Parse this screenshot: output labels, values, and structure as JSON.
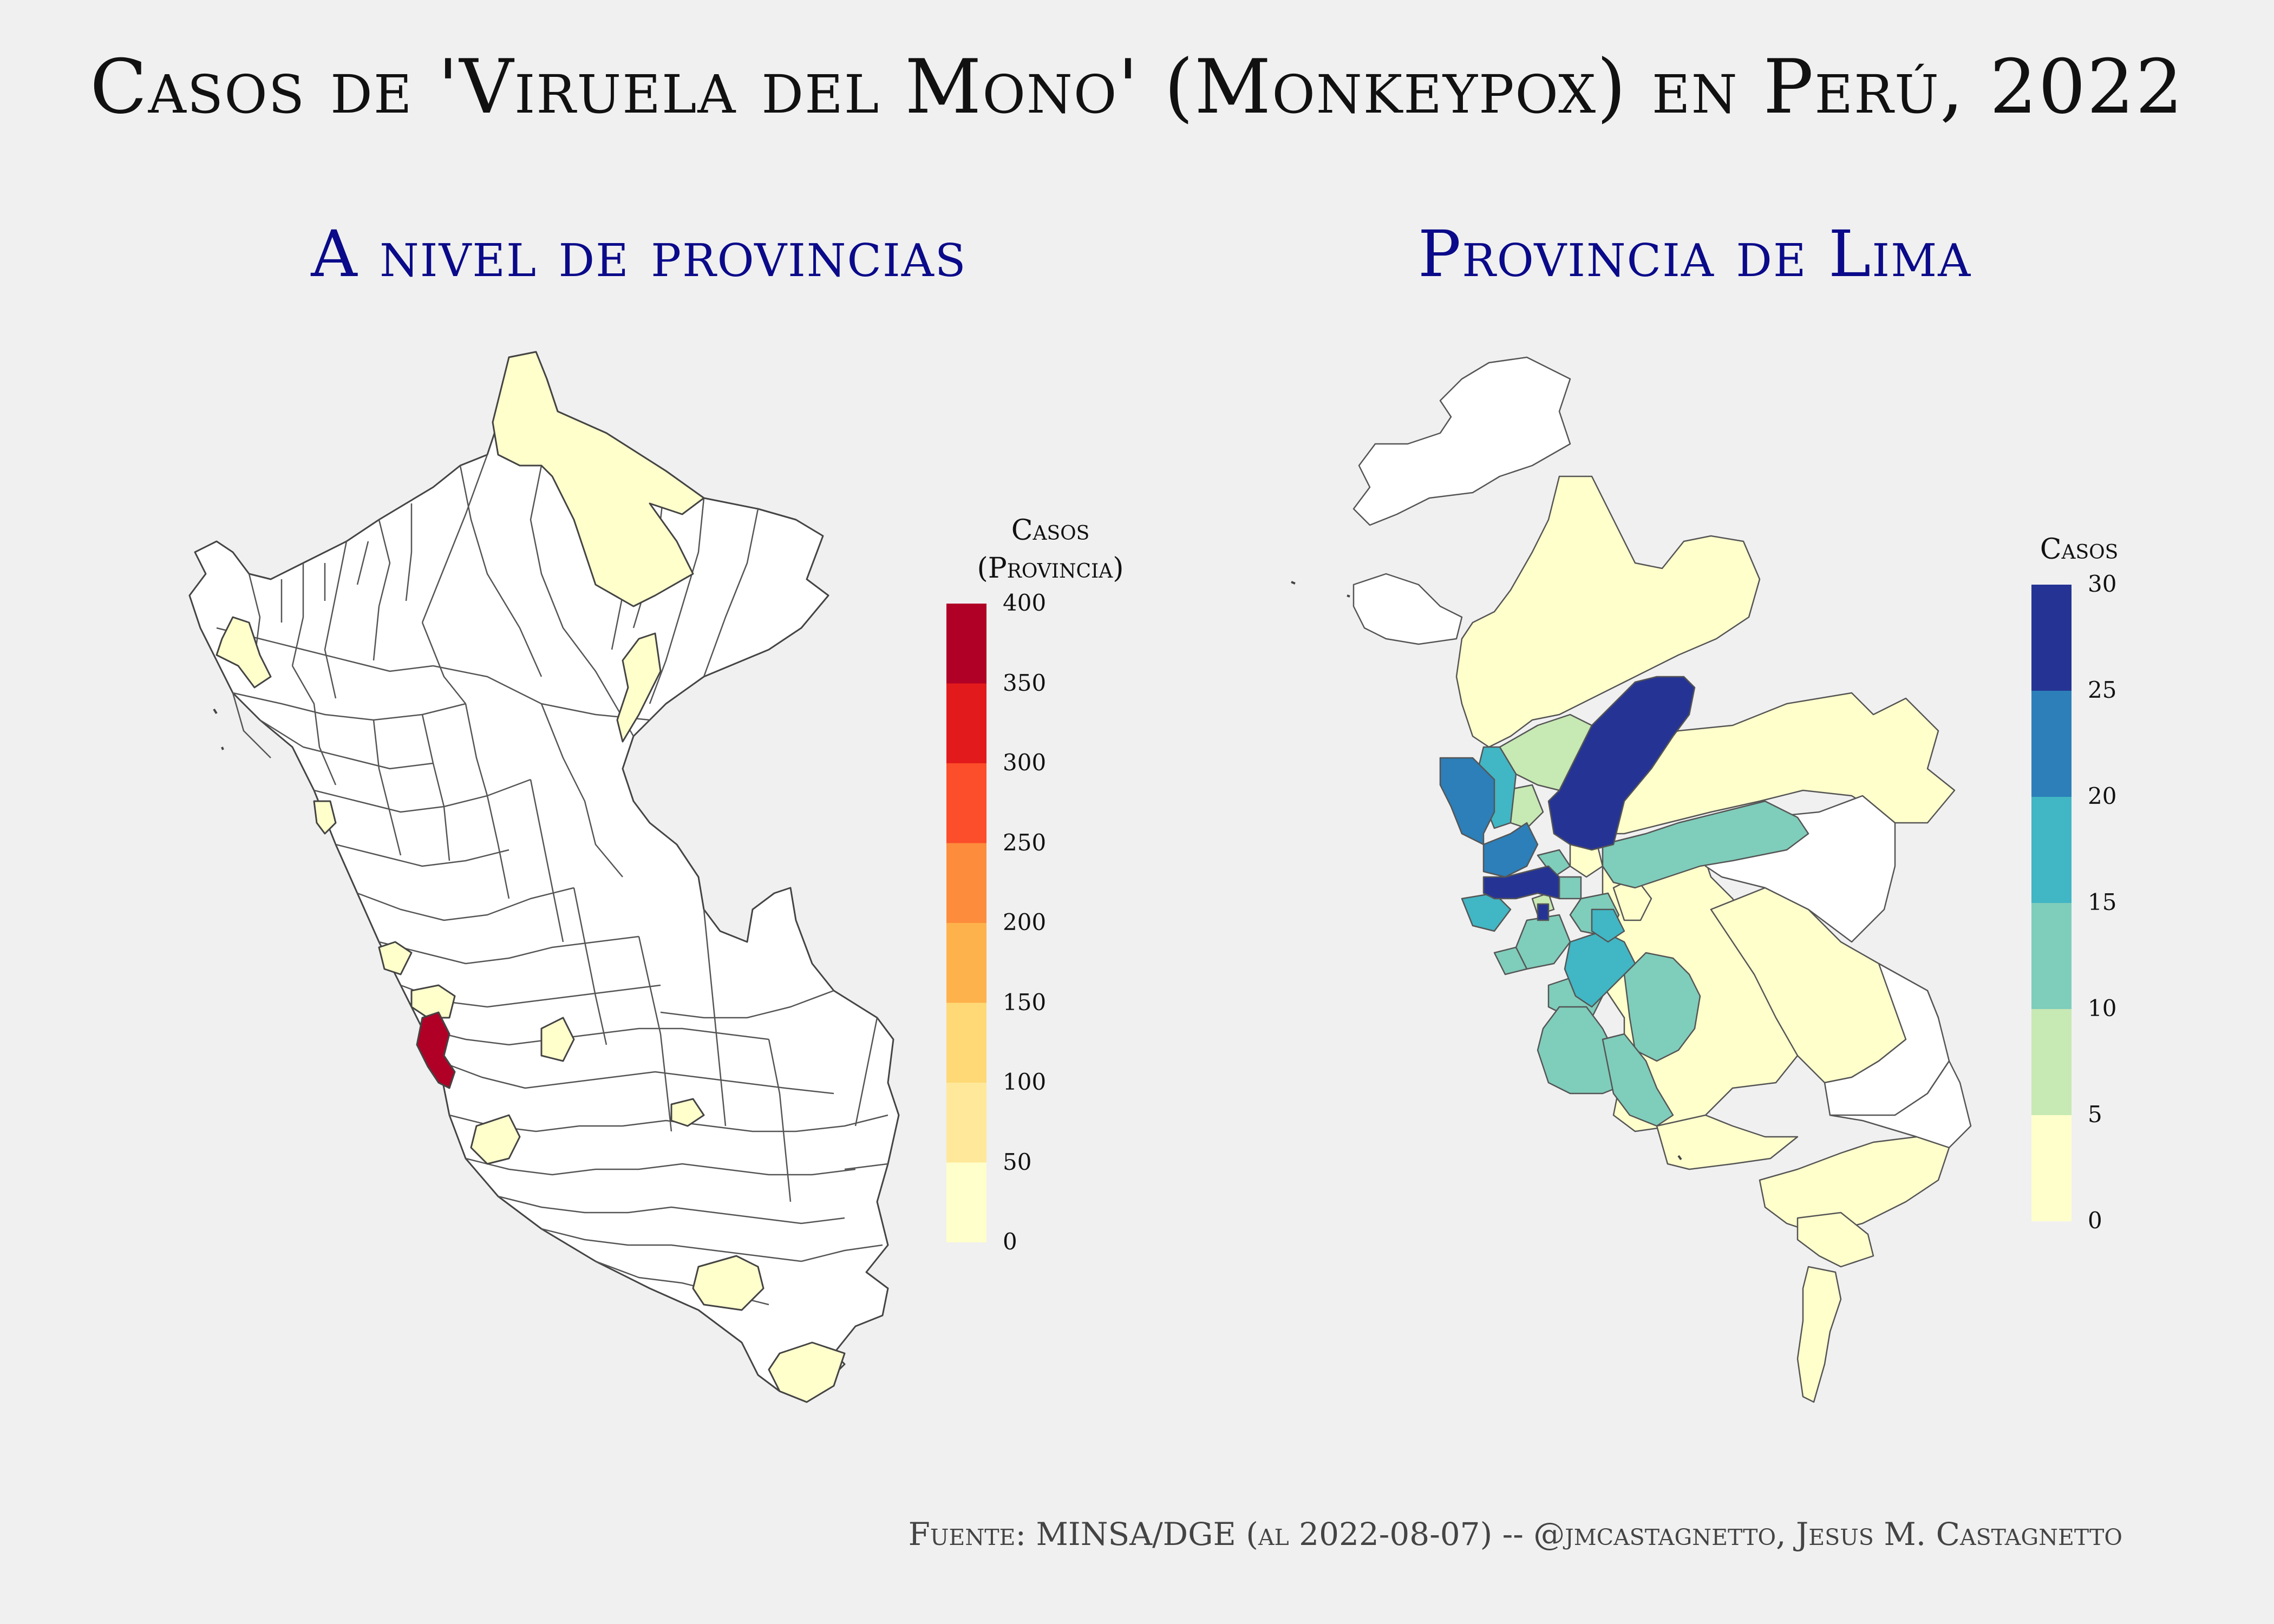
{
  "title": "Casos de 'Viruela del Mono' (Monkeypox) en Perú, 2022",
  "left_panel": {
    "subtitle": "A nivel de provincias",
    "legend": {
      "title_line1": "Casos",
      "title_line2": "(Provincia)",
      "ticks": [
        "400",
        "350",
        "300",
        "250",
        "200",
        "150",
        "100",
        "50",
        "0"
      ],
      "colors": [
        "#b10026",
        "#e31a1c",
        "#fc4e2a",
        "#fd8d3c",
        "#feb24c",
        "#fed976",
        "#ffe89a",
        "#ffffcc"
      ]
    }
  },
  "right_panel": {
    "subtitle": "Provincia de Lima",
    "legend": {
      "title": "Casos",
      "ticks": [
        "30",
        "25",
        "20",
        "15",
        "10",
        "5",
        "0"
      ],
      "colors": [
        "#253494",
        "#2c7fb8",
        "#41b6c4",
        "#7fcdbb",
        "#c7e9b4",
        "#ffffcc"
      ]
    }
  },
  "map_colors": {
    "none": "#ffffff",
    "low": "#ffffcc",
    "lima_high": "#b10026",
    "outline": "#444444"
  },
  "caption": "Fuente: MINSA/DGE (al 2022-08-07) -- @jmcastagnetto, Jesus M. Castagnetto"
}
